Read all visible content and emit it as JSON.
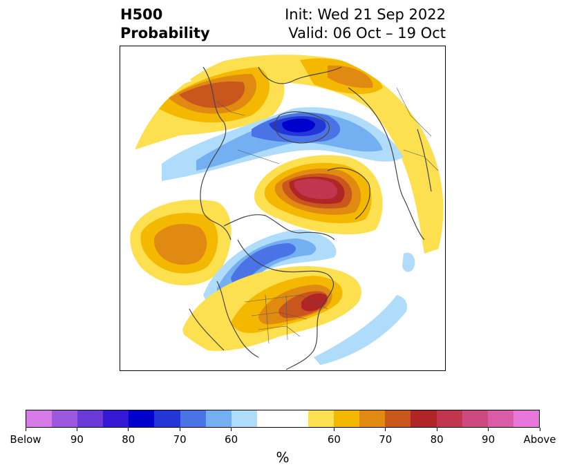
{
  "title": {
    "left_line1": "H500",
    "left_line2": "Probability",
    "right_line1": "Init: Wed 21 Sep 2022",
    "right_line2": "Valid: 06 Oct – 19 Oct"
  },
  "colorbar": {
    "colors": [
      "#d57ae6",
      "#9c59e0",
      "#6a3ad8",
      "#3518d4",
      "#0000cc",
      "#2337d6",
      "#4a73e6",
      "#74b0f1",
      "#aedcfa",
      "#ffffff",
      "#fde050",
      "#f4b800",
      "#e08a12",
      "#c9561d",
      "#b02525",
      "#c2354f",
      "#cc4a80",
      "#d95ca7",
      "#e877dc"
    ],
    "tick_labels": [
      "Below",
      "90",
      "80",
      "70",
      "60",
      "60",
      "70",
      "80",
      "90",
      "Above"
    ],
    "unit": "%"
  }
}
